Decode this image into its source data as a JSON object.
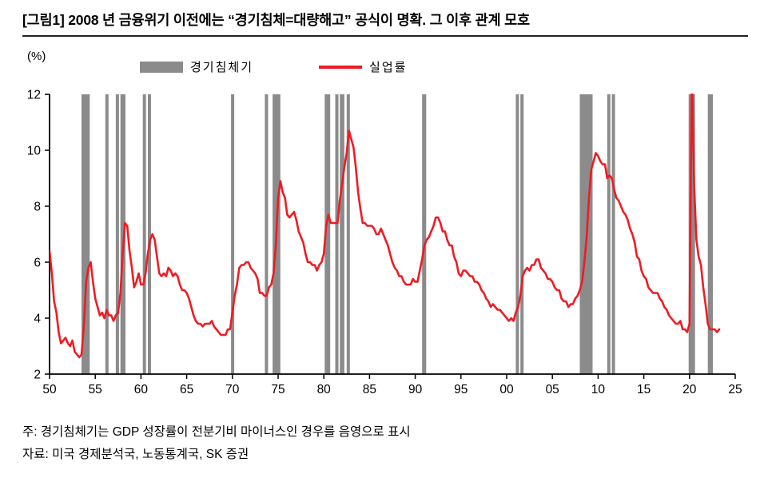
{
  "figure": {
    "note": "주: 경기침체기는 GDP 성장률이 전분기비 마이너스인 경우를 음영으로 표시",
    "source": "자료: 미국 경제분석국, 노동통계국, SK 증권"
  },
  "chart_data": {
    "type": "line",
    "title": "[그림1] 2008 년 금융위기 이전에는 “경기침체=대량해고” 공식이 명확. 그 이후 관계 모호",
    "unit_label": "(%)",
    "xlabel": "",
    "ylabel": "",
    "ylim": [
      2,
      12
    ],
    "yticks": [
      2,
      4,
      6,
      8,
      10,
      12
    ],
    "xlim": [
      1950,
      2025
    ],
    "xticks": [
      {
        "year": 1950,
        "label": "50"
      },
      {
        "year": 1955,
        "label": "55"
      },
      {
        "year": 1960,
        "label": "60"
      },
      {
        "year": 1965,
        "label": "65"
      },
      {
        "year": 1970,
        "label": "70"
      },
      {
        "year": 1975,
        "label": "75"
      },
      {
        "year": 1980,
        "label": "80"
      },
      {
        "year": 1985,
        "label": "85"
      },
      {
        "year": 1990,
        "label": "90"
      },
      {
        "year": 1995,
        "label": "95"
      },
      {
        "year": 2000,
        "label": "00"
      },
      {
        "year": 2005,
        "label": "05"
      },
      {
        "year": 2010,
        "label": "10"
      },
      {
        "year": 2015,
        "label": "15"
      },
      {
        "year": 2020,
        "label": "20"
      },
      {
        "year": 2025,
        "label": "25"
      }
    ],
    "legend": [
      {
        "label": "경기침체기",
        "type": "band"
      },
      {
        "label": "실업률",
        "type": "line"
      }
    ],
    "colors": {
      "line": "#ed1c24",
      "recession": "#8b8b8b",
      "axis": "#000000"
    },
    "grid": false,
    "legend_position": "top",
    "recessions": [
      [
        1953.5,
        1954.4
      ],
      [
        1956.1,
        1956.35
      ],
      [
        1957.25,
        1957.5
      ],
      [
        1957.75,
        1958.3
      ],
      [
        1960.2,
        1960.5
      ],
      [
        1960.75,
        1961.05
      ],
      [
        1969.85,
        1970.15
      ],
      [
        1973.55,
        1973.85
      ],
      [
        1974.4,
        1975.25
      ],
      [
        1980.1,
        1980.7
      ],
      [
        1981.25,
        1981.5
      ],
      [
        1981.75,
        1982.25
      ],
      [
        1982.5,
        1982.75
      ],
      [
        1990.75,
        1991.2
      ],
      [
        2001.0,
        2001.25
      ],
      [
        2001.5,
        2001.75
      ],
      [
        2008.0,
        2009.4
      ],
      [
        2011.0,
        2011.25
      ],
      [
        2011.5,
        2011.75
      ],
      [
        2019.9,
        2020.6
      ],
      [
        2022.0,
        2022.55
      ]
    ],
    "series": [
      {
        "name": "실업률",
        "start_year": 1950,
        "points_per_year": 4,
        "values": [
          6.4,
          5.6,
          4.6,
          4.2,
          3.5,
          3.1,
          3.2,
          3.3,
          3.1,
          3.0,
          3.2,
          2.8,
          2.7,
          2.6,
          2.7,
          3.7,
          5.3,
          5.8,
          6.0,
          5.3,
          4.7,
          4.4,
          4.1,
          4.2,
          4.0,
          4.3,
          4.1,
          4.1,
          3.9,
          4.1,
          4.2,
          4.9,
          6.3,
          7.4,
          7.3,
          6.4,
          5.8,
          5.1,
          5.3,
          5.6,
          5.2,
          5.2,
          5.6,
          6.3,
          6.8,
          7.0,
          6.8,
          6.2,
          5.6,
          5.5,
          5.6,
          5.5,
          5.8,
          5.7,
          5.5,
          5.6,
          5.5,
          5.2,
          5.0,
          5.0,
          4.9,
          4.7,
          4.4,
          4.1,
          3.9,
          3.8,
          3.8,
          3.7,
          3.8,
          3.8,
          3.8,
          3.9,
          3.7,
          3.6,
          3.5,
          3.4,
          3.4,
          3.4,
          3.6,
          3.6,
          4.2,
          4.8,
          5.2,
          5.8,
          5.9,
          5.9,
          6.0,
          6.0,
          5.8,
          5.7,
          5.6,
          5.4,
          4.9,
          4.9,
          4.8,
          4.8,
          5.1,
          5.2,
          5.6,
          6.6,
          8.3,
          8.9,
          8.5,
          8.3,
          7.7,
          7.6,
          7.7,
          7.8,
          7.5,
          7.1,
          6.9,
          6.7,
          6.3,
          6.0,
          6.0,
          5.9,
          5.9,
          5.7,
          5.9,
          6.0,
          6.3,
          7.3,
          7.7,
          7.4,
          7.4,
          7.4,
          7.4,
          8.2,
          8.8,
          9.4,
          9.9,
          10.7,
          10.4,
          10.1,
          9.4,
          8.5,
          7.9,
          7.4,
          7.4,
          7.3,
          7.3,
          7.3,
          7.2,
          7.0,
          7.0,
          7.2,
          7.0,
          6.8,
          6.6,
          6.3,
          6.0,
          5.8,
          5.7,
          5.5,
          5.5,
          5.3,
          5.2,
          5.2,
          5.2,
          5.4,
          5.3,
          5.3,
          5.7,
          6.1,
          6.6,
          6.8,
          6.9,
          7.1,
          7.3,
          7.6,
          7.6,
          7.4,
          7.1,
          7.1,
          6.8,
          6.6,
          6.6,
          6.2,
          6.0,
          5.6,
          5.5,
          5.7,
          5.7,
          5.6,
          5.5,
          5.5,
          5.3,
          5.3,
          5.2,
          5.0,
          4.9,
          4.7,
          4.6,
          4.4,
          4.5,
          4.4,
          4.3,
          4.3,
          4.2,
          4.1,
          4.0,
          3.9,
          4.0,
          3.9,
          4.2,
          4.4,
          4.8,
          5.5,
          5.7,
          5.8,
          5.7,
          5.9,
          5.9,
          6.1,
          6.1,
          5.8,
          5.7,
          5.6,
          5.4,
          5.4,
          5.3,
          5.1,
          5.0,
          5.0,
          4.7,
          4.6,
          4.6,
          4.4,
          4.5,
          4.5,
          4.7,
          4.8,
          5.0,
          5.3,
          6.0,
          6.9,
          8.3,
          9.3,
          9.6,
          9.9,
          9.8,
          9.6,
          9.5,
          9.5,
          9.0,
          9.1,
          9.0,
          8.6,
          8.3,
          8.2,
          8.0,
          7.8,
          7.7,
          7.5,
          7.2,
          7.0,
          6.7,
          6.2,
          6.1,
          5.7,
          5.5,
          5.4,
          5.1,
          5.0,
          4.9,
          4.9,
          4.9,
          4.7,
          4.6,
          4.4,
          4.3,
          4.1,
          4.0,
          3.9,
          3.8,
          3.8,
          3.9,
          3.6,
          3.6,
          3.5,
          3.8,
          13.0,
          8.8,
          6.8,
          6.2,
          5.9,
          5.1,
          4.5,
          3.8,
          3.6,
          3.6,
          3.6,
          3.5,
          3.6
        ]
      }
    ]
  }
}
